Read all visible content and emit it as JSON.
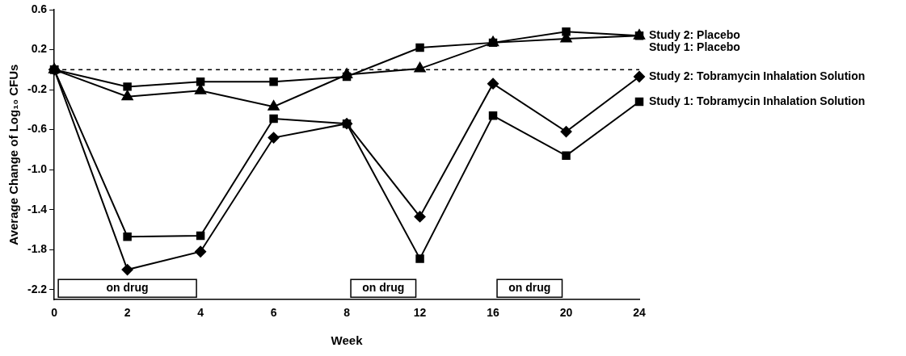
{
  "chart_data": {
    "type": "line",
    "x_label": "Week",
    "y_label": "Average Change of Log₁₀ CFUs",
    "categories": [
      "0",
      "2",
      "4",
      "6",
      "8",
      "12",
      "16",
      "20",
      "24"
    ],
    "ylim": [
      -2.3,
      0.6
    ],
    "yticks": [
      0.6,
      0.2,
      -0.2,
      -0.6,
      {
        "value": -1,
        "label": "-1.0"
      },
      -1.4,
      -1.8,
      -2.2
    ],
    "grid": false,
    "reference_lines": [
      {
        "y": 0,
        "line_style": "dashed"
      }
    ],
    "annotations": [
      {
        "text": "on drug",
        "from": "0",
        "to": "4"
      },
      {
        "text": "on drug",
        "from": "8",
        "to": "12"
      },
      {
        "text": "on drug",
        "from": "16",
        "to": "20"
      }
    ],
    "series": [
      {
        "name": "Study 2: Placebo",
        "color": "#000000",
        "marker": "square",
        "values": [
          0,
          -0.17,
          -0.12,
          -0.12,
          -0.07,
          0.22,
          0.27,
          0.38,
          0.34
        ]
      },
      {
        "name": "Study 1: Placebo",
        "color": "#000000",
        "marker": "triangle",
        "values": [
          0,
          -0.27,
          -0.21,
          -0.37,
          -0.05,
          0.01,
          0.27,
          0.31,
          0.34
        ]
      },
      {
        "name": "Study 2: Tobramycin Inhalation Solution",
        "color": "#000000",
        "marker": "diamond",
        "values": [
          0,
          -2.0,
          -1.82,
          -0.68,
          -0.54,
          -1.47,
          -0.14,
          -0.62,
          -0.07
        ]
      },
      {
        "name": "Study 1: Tobramycin Inhalation Solution",
        "color": "#000000",
        "marker": "square",
        "values": [
          0,
          -1.67,
          -1.66,
          -0.49,
          -0.54,
          -1.89,
          -0.46,
          -0.86,
          -0.32
        ]
      }
    ]
  }
}
